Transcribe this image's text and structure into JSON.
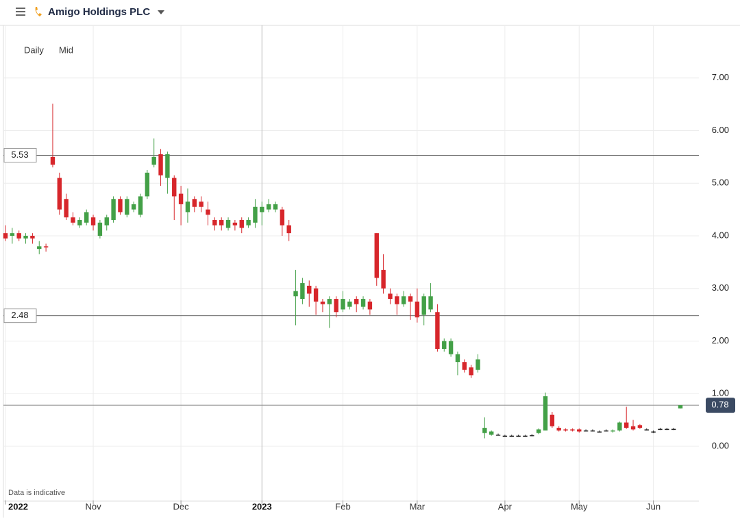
{
  "header": {
    "title": "Amigo Holdings PLC"
  },
  "controls": [
    "Daily",
    "Mid"
  ],
  "note": "Data is indicative",
  "chart_data": {
    "type": "candlestick",
    "categories": [
      "2022",
      null,
      null,
      null,
      null,
      null,
      null,
      null,
      null,
      null,
      null,
      null,
      null,
      "Nov",
      null,
      null,
      null,
      null,
      null,
      null,
      null,
      null,
      null,
      null,
      null,
      null,
      "Dec",
      null,
      null,
      null,
      null,
      null,
      null,
      null,
      null,
      null,
      null,
      null,
      "2023",
      null,
      null,
      null,
      null,
      null,
      null,
      null,
      null,
      null,
      null,
      null,
      "Feb",
      null,
      null,
      null,
      null,
      null,
      null,
      null,
      null,
      null,
      null,
      "Mar",
      null,
      null,
      null,
      null,
      null,
      null,
      null,
      null,
      null,
      null,
      null,
      null,
      "Apr",
      null,
      null,
      null,
      null,
      null,
      null,
      null,
      null,
      null,
      null,
      "May",
      null,
      null,
      null,
      null,
      null,
      null,
      null,
      null,
      null,
      null,
      "Jun",
      null,
      null,
      null,
      null
    ],
    "open": [
      4.05,
      4.0,
      4.05,
      3.95,
      4.0,
      3.75,
      3.8,
      5.5,
      5.1,
      4.7,
      4.35,
      4.2,
      4.25,
      4.35,
      4.0,
      4.2,
      4.3,
      4.7,
      4.4,
      4.5,
      4.4,
      4.75,
      5.35,
      5.55,
      5.1,
      5.1,
      4.8,
      4.45,
      4.7,
      4.65,
      4.5,
      4.3,
      4.3,
      4.15,
      4.25,
      4.3,
      4.2,
      4.25,
      4.45,
      4.5,
      4.5,
      4.5,
      4.2,
      2.85,
      2.8,
      3.05,
      3.0,
      2.75,
      2.7,
      2.8,
      2.6,
      2.65,
      2.8,
      2.65,
      2.75,
      4.05,
      3.35,
      2.9,
      2.85,
      2.7,
      2.85,
      2.75,
      2.5,
      2.6,
      2.55,
      1.85,
      1.75,
      1.6,
      1.6,
      1.5,
      1.45,
      0.25,
      0.22,
      0.22,
      0.2,
      0.2,
      0.2,
      0.2,
      0.21,
      0.25,
      0.3,
      0.6,
      0.35,
      0.32,
      0.32,
      0.32,
      0.3,
      0.3,
      0.28,
      0.3,
      0.28,
      0.3,
      0.45,
      0.38,
      0.4,
      0.32,
      0.28,
      0.33,
      0.33,
      0.33,
      0.72
    ],
    "high": [
      4.2,
      4.15,
      4.1,
      4.05,
      4.05,
      3.9,
      3.85,
      6.51,
      5.2,
      4.8,
      4.45,
      4.35,
      4.5,
      4.4,
      4.3,
      4.4,
      4.75,
      4.75,
      4.75,
      4.65,
      4.8,
      5.25,
      5.85,
      5.65,
      5.6,
      5.15,
      4.95,
      4.9,
      4.75,
      4.75,
      4.65,
      4.35,
      4.35,
      4.35,
      4.3,
      4.35,
      4.35,
      4.7,
      4.65,
      4.7,
      4.65,
      4.55,
      4.3,
      3.35,
      3.2,
      3.15,
      3.05,
      2.8,
      2.85,
      2.85,
      2.95,
      2.8,
      2.85,
      2.85,
      2.8,
      4.05,
      3.65,
      3.0,
      2.9,
      2.95,
      2.9,
      3.0,
      2.9,
      3.1,
      2.7,
      2.05,
      2.05,
      1.8,
      1.65,
      1.55,
      1.75,
      0.55,
      0.3,
      0.24,
      0.22,
      0.22,
      0.22,
      0.22,
      0.23,
      0.34,
      1.02,
      0.65,
      0.38,
      0.34,
      0.34,
      0.34,
      0.32,
      0.32,
      0.3,
      0.32,
      0.32,
      0.47,
      0.75,
      0.5,
      0.42,
      0.34,
      0.3,
      0.35,
      0.35,
      0.35,
      0.78
    ],
    "low": [
      3.9,
      3.85,
      3.9,
      3.85,
      3.85,
      3.65,
      3.7,
      5.3,
      4.4,
      4.3,
      4.2,
      4.15,
      4.2,
      4.1,
      3.95,
      4.1,
      4.25,
      4.4,
      4.35,
      4.45,
      4.35,
      4.7,
      5.3,
      4.95,
      4.8,
      4.3,
      4.2,
      4.25,
      4.45,
      4.45,
      4.2,
      4.1,
      4.1,
      4.1,
      4.1,
      4.05,
      4.15,
      4.15,
      4.2,
      4.45,
      4.45,
      4.0,
      3.9,
      2.3,
      2.7,
      2.65,
      2.5,
      2.55,
      2.25,
      2.45,
      2.55,
      2.6,
      2.55,
      2.6,
      2.5,
      3.05,
      2.9,
      2.7,
      2.5,
      2.65,
      2.4,
      2.35,
      2.3,
      2.55,
      1.8,
      1.8,
      1.7,
      1.35,
      1.4,
      1.3,
      1.4,
      0.15,
      0.2,
      0.2,
      0.18,
      0.18,
      0.18,
      0.18,
      0.19,
      0.23,
      0.3,
      0.35,
      0.28,
      0.28,
      0.28,
      0.26,
      0.28,
      0.28,
      0.26,
      0.28,
      0.26,
      0.28,
      0.33,
      0.3,
      0.33,
      0.3,
      0.25,
      0.31,
      0.31,
      0.31,
      0.72
    ],
    "close": [
      3.95,
      4.05,
      3.95,
      4.0,
      3.95,
      3.8,
      3.78,
      5.35,
      4.5,
      4.35,
      4.25,
      4.3,
      4.45,
      4.2,
      4.25,
      4.35,
      4.7,
      4.45,
      4.7,
      4.6,
      4.75,
      5.2,
      5.5,
      5.15,
      5.55,
      4.75,
      4.6,
      4.65,
      4.55,
      4.55,
      4.4,
      4.2,
      4.2,
      4.3,
      4.2,
      4.15,
      4.3,
      4.55,
      4.55,
      4.6,
      4.6,
      4.2,
      4.05,
      2.95,
      3.1,
      2.9,
      2.75,
      2.7,
      2.8,
      2.55,
      2.8,
      2.75,
      2.7,
      2.8,
      2.6,
      3.2,
      3.0,
      2.8,
      2.7,
      2.85,
      2.75,
      2.45,
      2.85,
      2.85,
      1.85,
      2.0,
      2.0,
      1.75,
      1.45,
      1.35,
      1.65,
      0.35,
      0.28,
      0.22,
      0.2,
      0.2,
      0.2,
      0.2,
      0.21,
      0.32,
      0.95,
      0.38,
      0.3,
      0.3,
      0.3,
      0.28,
      0.3,
      0.3,
      0.28,
      0.3,
      0.3,
      0.45,
      0.35,
      0.32,
      0.35,
      0.32,
      0.28,
      0.33,
      0.33,
      0.33,
      0.78
    ],
    "up_color": "#43a047",
    "down_color": "#d7262b",
    "flat_color": "#222222",
    "ylim": [
      -1.03,
      8.0
    ],
    "yticks": [
      {
        "value": 0,
        "label": "0.00"
      },
      {
        "value": 1,
        "label": "1.00"
      },
      {
        "value": 2,
        "label": "2.00"
      },
      {
        "value": 3,
        "label": "3.00"
      },
      {
        "value": 4,
        "label": "4.00"
      },
      {
        "value": 5,
        "label": "5.00"
      },
      {
        "value": 6,
        "label": "6.00"
      },
      {
        "value": 7,
        "label": "7.00"
      }
    ],
    "reference_lines": [
      5.53,
      2.48
    ],
    "last_price": 0.78,
    "grid": true
  }
}
